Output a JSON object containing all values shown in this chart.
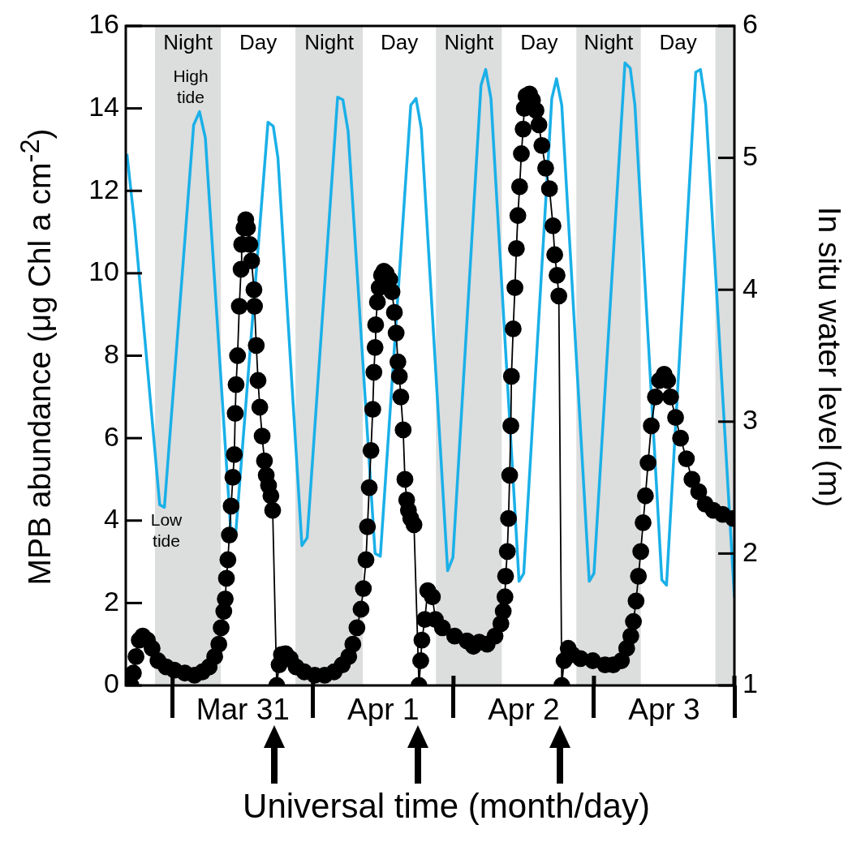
{
  "chart_data": {
    "type": "line",
    "xlabel": "Universal time (month/day)",
    "ylabel": "MPB abundance (μg Chl a cm$^{-2}$)",
    "y2label": "In situ water level (m)",
    "xlim": [
      "--03-30T16:00",
      "--04-04T00:00"
    ],
    "xticks": [
      {
        "value": "--03-31T00:00",
        "label": null
      },
      {
        "value": "--03-31T12:00",
        "label": "Mar 31"
      },
      {
        "value": "--04-01T00:00",
        "label": null
      },
      {
        "value": "--04-01T12:00",
        "label": "Apr 1"
      },
      {
        "value": "--04-02T00:00",
        "label": null
      },
      {
        "value": "--04-02T12:00",
        "label": "Apr 2"
      },
      {
        "value": "--04-03T00:00",
        "label": null
      },
      {
        "value": "--04-03T12:00",
        "label": "Apr 3"
      },
      {
        "value": "--04-04T00:00",
        "label": null
      }
    ],
    "ylim": [
      0,
      16
    ],
    "yticks": [
      0,
      2,
      4,
      6,
      8,
      10,
      12,
      14,
      16
    ],
    "y2lim": [
      1,
      6
    ],
    "y2ticks": [
      1,
      2,
      3,
      4,
      5,
      6
    ],
    "bands": [
      {
        "axis": "x",
        "from": "--03-30T21:00",
        "to": "--03-31T08:15",
        "label": "Night",
        "color": "#dcdddd"
      },
      {
        "axis": "x",
        "from": "--03-31T21:00",
        "to": "--04-01T08:30",
        "label": "Night",
        "color": "#dcdddd"
      },
      {
        "axis": "x",
        "from": "--04-01T21:00",
        "to": "--04-02T08:15",
        "label": "Night",
        "color": "#dcdddd"
      },
      {
        "axis": "x",
        "from": "--04-02T21:00",
        "to": "--04-03T08:00",
        "label": "Night",
        "color": "#dcdddd"
      },
      {
        "axis": "x",
        "from": "--04-03T20:45",
        "to": "--04-04T00:00",
        "label": null,
        "color": "#dcdddd"
      }
    ],
    "annotations": [
      "Day",
      "Day",
      "Day",
      "Day",
      "High tide",
      "Low tide"
    ],
    "series": [
      {
        "color": "#1ab0e8",
        "axis": "y2",
        "marker": "none",
        "x": [
          "--03-30T16:12",
          "--03-30T17:30",
          "--03-30T21:48",
          "--03-30T22:36",
          "--03-31T03:36",
          "--03-31T04:36",
          "--03-31T05:36",
          "--03-31T09:54",
          "--03-31T10:48",
          "--03-31T16:18",
          "--03-31T17:12",
          "--03-31T18:00",
          "--03-31T22:06",
          "--03-31T23:00",
          "--04-01T04:12",
          "--04-01T05:06",
          "--04-01T06:00",
          "--04-01T10:36",
          "--04-01T11:30",
          "--04-01T16:42",
          "--04-01T17:36",
          "--04-01T18:30",
          "--04-01T23:00",
          "--04-01T23:54",
          "--04-02T04:42",
          "--04-02T05:30",
          "--04-02T06:24",
          "--04-02T11:12",
          "--04-02T12:00",
          "--04-02T16:48",
          "--04-02T17:36",
          "--04-02T18:30",
          "--04-02T23:12",
          "--04-03T00:00",
          "--04-03T05:18",
          "--04-03T06:12",
          "--04-03T07:00",
          "--04-03T11:36",
          "--04-03T12:24",
          "--04-03T17:24",
          "--04-03T18:12",
          "--04-03T19:06",
          "--04-04T00:00"
        ],
        "values": [
          5.03,
          4.5,
          2.37,
          2.35,
          5.25,
          5.35,
          5.15,
          2.2,
          2.16,
          5.27,
          5.24,
          5.0,
          2.06,
          2.12,
          5.46,
          5.44,
          5.2,
          2.0,
          1.98,
          5.4,
          5.45,
          5.22,
          1.87,
          1.97,
          5.55,
          5.67,
          5.45,
          1.79,
          1.85,
          5.45,
          5.6,
          5.4,
          1.79,
          1.85,
          5.72,
          5.68,
          5.4,
          1.8,
          1.76,
          5.65,
          5.67,
          5.4,
          1.67
        ]
      },
      {
        "color": "#000000",
        "marker": "circle",
        "x": [
          "--03-30T16:54",
          "--03-30T17:18",
          "--03-30T17:45",
          "--03-30T18:18",
          "--03-30T18:54",
          "--03-30T19:42",
          "--03-30T20:30",
          "--03-30T21:30",
          "--03-30T22:54",
          "--03-31T00:18",
          "--03-31T02:06",
          "--03-31T03:45",
          "--03-31T05:06",
          "--03-31T06:15",
          "--03-31T07:12",
          "--03-31T07:54",
          "--03-31T08:18",
          "--03-31T08:45",
          "--03-31T09:00",
          "--03-31T09:12",
          "--03-31T09:27",
          "--03-31T09:42",
          "--03-31T10:00",
          "--03-31T10:18",
          "--03-31T10:33",
          "--03-31T10:42",
          "--03-31T10:51",
          "--03-31T11:06",
          "--03-31T11:24",
          "--03-31T11:42",
          "--03-31T11:48",
          "--03-31T12:12",
          "--03-31T12:30",
          "--03-31T12:48",
          "--03-31T13:12",
          "--03-31T13:30",
          "--03-31T13:54",
          "--03-31T14:00",
          "--03-31T14:18",
          "--03-31T14:36",
          "--03-31T14:54",
          "--03-31T15:18",
          "--03-31T15:42",
          "--03-31T16:00",
          "--03-31T16:24",
          "--03-31T16:48",
          "--03-31T17:06",
          "--03-31T17:48",
          "--03-31T18:12",
          "--03-31T18:36",
          "--03-31T19:18",
          "--03-31T20:06",
          "--03-31T21:06",
          "--03-31T22:30",
          "--04-01T00:18",
          "--04-01T02:00",
          "--04-01T03:36",
          "--04-01T05:00",
          "--04-01T06:06",
          "--04-01T06:48",
          "--04-01T07:30",
          "--04-01T08:12",
          "--04-01T08:36",
          "--04-01T09:03",
          "--04-01T09:18",
          "--04-01T09:36",
          "--04-01T09:54",
          "--04-01T10:12",
          "--04-01T10:24",
          "--04-01T10:36",
          "--04-01T10:42",
          "--04-01T11:00",
          "--04-01T11:18",
          "--04-01T11:42",
          "--04-01T12:06",
          "--04-01T12:30",
          "--04-01T13:06",
          "--04-01T13:30",
          "--04-01T13:54",
          "--04-01T14:12",
          "--04-01T14:30",
          "--04-01T14:45",
          "--04-01T15:00",
          "--04-01T15:24",
          "--04-01T15:42",
          "--04-01T16:00",
          "--04-01T16:18",
          "--04-01T16:42",
          "--04-01T17:15",
          "--04-01T18:06",
          "--04-01T18:24",
          "--04-01T18:36",
          "--04-01T19:06",
          "--04-01T19:36",
          "--04-01T20:24",
          "--04-01T20:54",
          "--04-01T22:06",
          "--04-02T00:12",
          "--04-02T02:18",
          "--04-02T03:24",
          "--04-02T04:24",
          "--04-02T05:45",
          "--04-02T07:06",
          "--04-02T08:06",
          "--04-02T08:30",
          "--04-02T08:48",
          "--04-02T08:54",
          "--04-02T09:12",
          "--04-02T09:24",
          "--04-02T09:36",
          "--04-02T09:48",
          "--04-02T09:54",
          "--04-02T10:12",
          "--04-02T10:30",
          "--04-02T10:45",
          "--04-02T11:00",
          "--04-02T11:18",
          "--04-02T11:36",
          "--04-02T11:54",
          "--04-02T12:06",
          "--04-02T12:24",
          "--04-02T13:00",
          "--04-02T13:30",
          "--04-02T14:06",
          "--04-02T14:36",
          "--04-02T15:06",
          "--04-02T15:45",
          "--04-02T16:24",
          "--04-02T17:00",
          "--04-02T17:18",
          "--04-02T17:42",
          "--04-02T18:00",
          "--04-02T18:30",
          "--04-02T18:54",
          "--04-02T19:36",
          "--04-02T20:18",
          "--04-02T21:42",
          "--04-02T23:48",
          "--04-03T01:54",
          "--04-03T03:18",
          "--04-03T04:42",
          "--04-03T05:36",
          "--04-03T06:18",
          "--04-03T06:45",
          "--04-03T07:12",
          "--04-03T07:36",
          "--04-03T08:00",
          "--04-03T08:24",
          "--04-03T08:48",
          "--04-03T09:15",
          "--04-03T09:48",
          "--04-03T10:30",
          "--04-03T11:12",
          "--04-03T12:00",
          "--04-03T12:36",
          "--04-03T13:06",
          "--04-03T13:57",
          "--04-03T14:48",
          "--04-03T15:48",
          "--04-03T16:45",
          "--04-03T17:54",
          "--04-03T19:00",
          "--04-03T20:24",
          "--04-03T22:00",
          "--04-03T23:48"
        ],
        "values": [
          0,
          0.3,
          0.7,
          1.1,
          1.2,
          1.1,
          0.9,
          0.6,
          0.45,
          0.37,
          0.3,
          0.25,
          0.33,
          0.45,
          0.7,
          1.0,
          1.4,
          1.8,
          2.1,
          2.6,
          3.05,
          3.65,
          4.35,
          5.05,
          5.6,
          6.6,
          7.3,
          8.0,
          9.2,
          10.1,
          10.7,
          11.1,
          11.3,
          11.1,
          10.7,
          10.3,
          9.6,
          9.2,
          8.25,
          7.4,
          6.75,
          6.05,
          5.45,
          5.1,
          4.85,
          4.6,
          4.25,
          0,
          0.5,
          0.75,
          0.77,
          0.65,
          0.45,
          0.33,
          0.25,
          0.25,
          0.33,
          0.5,
          0.7,
          1.0,
          1.4,
          1.85,
          2.35,
          3.05,
          3.85,
          4.8,
          5.7,
          6.7,
          7.6,
          8.2,
          8.75,
          9.3,
          9.65,
          9.95,
          10.05,
          10.0,
          9.85,
          9.55,
          9.05,
          8.55,
          7.85,
          7.5,
          7.0,
          6.2,
          5.0,
          4.5,
          4.25,
          4.05,
          3.9,
          0,
          0.6,
          1.1,
          1.6,
          2.3,
          2.15,
          1.6,
          1.4,
          1.2,
          1.08,
          0.95,
          1.05,
          1.0,
          1.2,
          1.5,
          1.8,
          2.15,
          2.65,
          3.25,
          4.05,
          5.1,
          6.3,
          7.5,
          8.65,
          9.65,
          10.6,
          11.4,
          12.1,
          12.9,
          13.5,
          14.0,
          14.3,
          14.35,
          14.2,
          13.95,
          13.6,
          13.1,
          12.55,
          12.05,
          11.15,
          10.45,
          9.95,
          9.45,
          0,
          0.6,
          0.9,
          0.75,
          0.65,
          0.6,
          0.5,
          0.5,
          0.6,
          0.9,
          1.2,
          1.55,
          2.05,
          2.65,
          3.25,
          3.95,
          4.6,
          5.4,
          6.3,
          7.0,
          7.4,
          7.55,
          7.4,
          7.0,
          6.5,
          6.0,
          5.5,
          5.0,
          4.7,
          4.4,
          4.25,
          4.15,
          4.05
        ]
      }
    ]
  }
}
